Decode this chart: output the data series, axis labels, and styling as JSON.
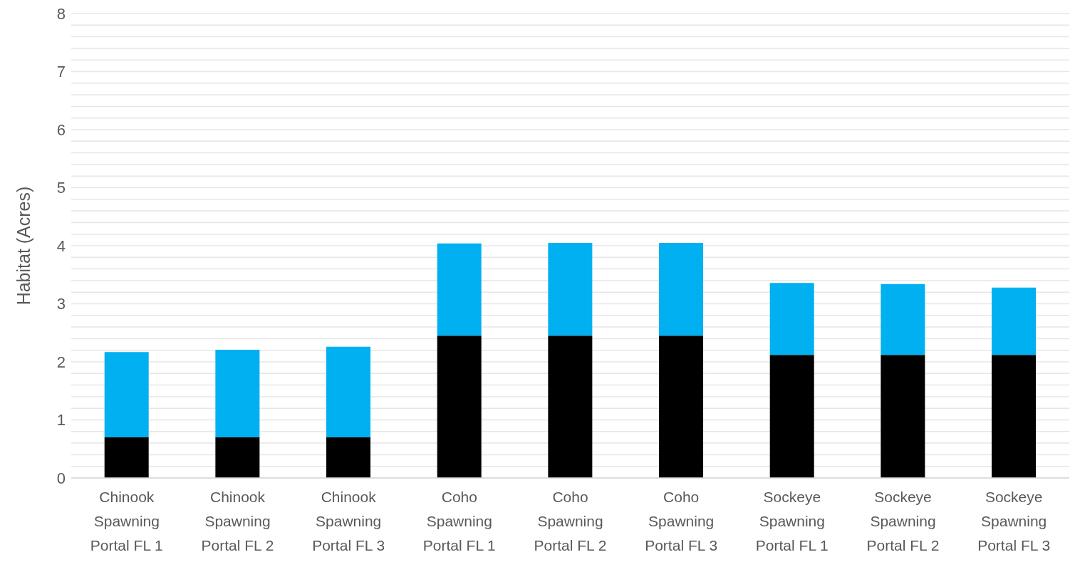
{
  "chart_data": {
    "type": "bar",
    "stacked": true,
    "ylabel": "Habitat (Acres)",
    "categories": [
      "Chinook Spawning Portal FL 1",
      "Chinook Spawning Portal FL 2",
      "Chinook Spawning Portal FL 3",
      "Coho Spawning Portal FL 1",
      "Coho Spawning Portal FL 2",
      "Coho Spawning Portal FL 3",
      "Sockeye Spawning Portal FL 1",
      "Sockeye Spawning Portal FL 2",
      "Sockeye Spawning Portal FL 3"
    ],
    "series": [
      {
        "color": "#000000",
        "values": [
          0.7,
          0.7,
          0.7,
          2.45,
          2.45,
          2.45,
          2.12,
          2.12,
          2.12
        ]
      },
      {
        "color": "#00b0f0",
        "values": [
          1.47,
          1.51,
          1.56,
          1.59,
          1.6,
          1.6,
          1.24,
          1.22,
          1.16
        ]
      }
    ],
    "ylim": [
      0,
      8
    ],
    "yticks": [
      0,
      {
        "value": 0.2,
        "label": null
      },
      {
        "value": 0.4,
        "label": null
      },
      {
        "value": 0.6,
        "label": null
      },
      {
        "value": 0.8,
        "label": null
      },
      1,
      {
        "value": 1.2,
        "label": null
      },
      {
        "value": 1.4,
        "label": null
      },
      {
        "value": 1.6,
        "label": null
      },
      {
        "value": 1.8,
        "label": null
      },
      2,
      {
        "value": 2.2,
        "label": null
      },
      {
        "value": 2.4,
        "label": null
      },
      {
        "value": 2.6,
        "label": null
      },
      {
        "value": 2.8,
        "label": null
      },
      3,
      {
        "value": 3.2,
        "label": null
      },
      {
        "value": 3.4,
        "label": null
      },
      {
        "value": 3.6,
        "label": null
      },
      {
        "value": 3.8,
        "label": null
      },
      4,
      {
        "value": 4.2,
        "label": null
      },
      {
        "value": 4.4,
        "label": null
      },
      {
        "value": 4.6,
        "label": null
      },
      {
        "value": 4.8,
        "label": null
      },
      5,
      {
        "value": 5.2,
        "label": null
      },
      {
        "value": 5.4,
        "label": null
      },
      {
        "value": 5.6,
        "label": null
      },
      {
        "value": 5.8,
        "label": null
      },
      6,
      {
        "value": 6.2,
        "label": null
      },
      {
        "value": 6.4,
        "label": null
      },
      {
        "value": 6.6,
        "label": null
      },
      {
        "value": 6.8,
        "label": null
      },
      7,
      {
        "value": 7.2,
        "label": null
      },
      {
        "value": 7.4,
        "label": null
      },
      {
        "value": 7.6,
        "label": null
      },
      {
        "value": 7.8,
        "label": null
      },
      8
    ],
    "grid": "y",
    "legend": false
  }
}
